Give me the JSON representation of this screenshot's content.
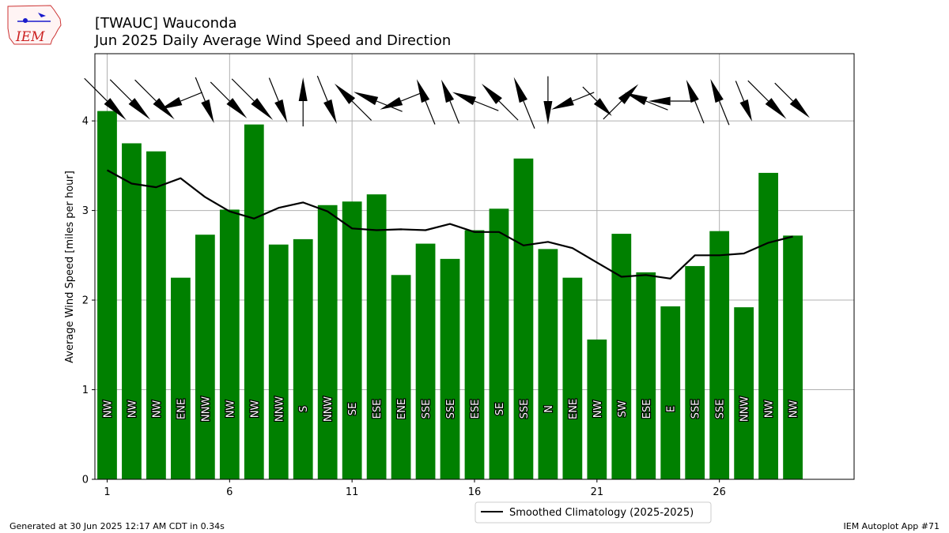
{
  "header": {
    "title_line1": "[TWAUC] Wauconda",
    "title_line2": "Jun 2025 Daily Average Wind Speed and Direction"
  },
  "logo": {
    "text": "IEM"
  },
  "footer": {
    "generated": "Generated at 30 Jun 2025 12:17 AM CDT in 0.34s",
    "app": "IEM Autoplot App #71"
  },
  "chart_data": {
    "type": "bar",
    "title": "[TWAUC] Wauconda\nJun 2025 Daily Average Wind Speed and Direction",
    "ylabel": "Average Wind Speed [miles per hour]",
    "xlabel": "",
    "xlim": [
      0.5,
      31.5
    ],
    "ylim": [
      0,
      4.75
    ],
    "x_ticks": [
      1,
      6,
      11,
      16,
      21,
      26
    ],
    "y_ticks": [
      0,
      1,
      2,
      3,
      4
    ],
    "grid": true,
    "bar_color": "#008000",
    "days": [
      1,
      2,
      3,
      4,
      5,
      6,
      7,
      8,
      9,
      10,
      11,
      12,
      13,
      14,
      15,
      16,
      17,
      18,
      19,
      20,
      21,
      22,
      23,
      24,
      25,
      26,
      27,
      28,
      29
    ],
    "values": [
      4.11,
      3.75,
      3.66,
      2.25,
      2.73,
      3.01,
      3.96,
      2.62,
      2.68,
      3.06,
      3.1,
      3.18,
      2.28,
      2.63,
      2.46,
      2.78,
      3.02,
      3.58,
      2.57,
      2.25,
      1.56,
      2.74,
      2.31,
      1.93,
      2.38,
      2.77,
      1.92,
      3.42,
      2.72
    ],
    "directions": [
      "NW",
      "NW",
      "NW",
      "ENE",
      "NNW",
      "NW",
      "NW",
      "NNW",
      "S",
      "NNW",
      "SE",
      "ESE",
      "ENE",
      "SSE",
      "SSE",
      "ESE",
      "SE",
      "SSE",
      "N",
      "ENE",
      "NW",
      "SW",
      "ESE",
      "E",
      "SSE",
      "SSE",
      "NNW",
      "NW",
      "NW"
    ],
    "direction_degrees": [
      315,
      315,
      315,
      68,
      338,
      315,
      315,
      338,
      180,
      338,
      135,
      112,
      68,
      158,
      158,
      112,
      135,
      158,
      0,
      68,
      315,
      225,
      112,
      90,
      158,
      158,
      338,
      315,
      315
    ],
    "series": [
      {
        "name": "Smoothed Climatology (2025-2025)",
        "type": "line",
        "color": "#000000",
        "x": [
          1,
          2,
          3,
          4,
          5,
          6,
          7,
          8,
          9,
          10,
          11,
          12,
          13,
          14,
          15,
          16,
          17,
          18,
          19,
          20,
          21,
          22,
          23,
          24,
          25,
          26,
          27,
          28,
          29
        ],
        "values": [
          3.45,
          3.3,
          3.26,
          3.36,
          3.15,
          2.99,
          2.91,
          3.03,
          3.09,
          2.99,
          2.8,
          2.78,
          2.79,
          2.78,
          2.85,
          2.76,
          2.76,
          2.61,
          2.65,
          2.58,
          2.42,
          2.26,
          2.28,
          2.24,
          2.5,
          2.5,
          2.52,
          2.64,
          2.71
        ]
      }
    ],
    "legend_position": "bottom-center"
  }
}
